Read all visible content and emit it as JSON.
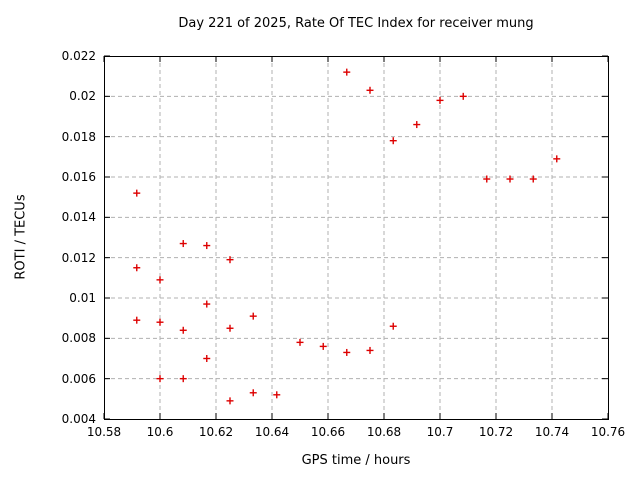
{
  "chart_data": {
    "type": "scatter",
    "title": "Day 221 of 2025, Rate Of TEC Index for receiver mung",
    "xlabel": "GPS time / hours",
    "ylabel": "ROTI / TECUs",
    "xlim": [
      10.58,
      10.76
    ],
    "ylim": [
      0.004,
      0.022
    ],
    "xtick_values": [
      10.58,
      10.6,
      10.62,
      10.64,
      10.66,
      10.68,
      10.7,
      10.72,
      10.74,
      10.76
    ],
    "xtick_labels": [
      "10.58",
      "10.6",
      "10.62",
      "10.64",
      "10.66",
      "10.68",
      "10.7",
      "10.72",
      "10.74",
      "10.76"
    ],
    "ytick_values": [
      0.004,
      0.006,
      0.008,
      0.01,
      0.012,
      0.014,
      0.016,
      0.018,
      0.02,
      0.022
    ],
    "ytick_labels": [
      "0.004",
      "0.006",
      "0.008",
      "0.01",
      "0.012",
      "0.014",
      "0.016",
      "0.018",
      "0.02",
      "0.022"
    ],
    "grid": true,
    "legend": "none",
    "marker": "plus",
    "series": [
      {
        "name": "ROTI",
        "points": [
          [
            10.5917,
            0.0152
          ],
          [
            10.5917,
            0.0115
          ],
          [
            10.5917,
            0.0089
          ],
          [
            10.6,
            0.0109
          ],
          [
            10.6,
            0.0088
          ],
          [
            10.6,
            0.006
          ],
          [
            10.6083,
            0.0127
          ],
          [
            10.6083,
            0.0084
          ],
          [
            10.6083,
            0.006
          ],
          [
            10.6167,
            0.0126
          ],
          [
            10.6167,
            0.0097
          ],
          [
            10.6167,
            0.007
          ],
          [
            10.625,
            0.0119
          ],
          [
            10.625,
            0.0085
          ],
          [
            10.625,
            0.0049
          ],
          [
            10.6333,
            0.0091
          ],
          [
            10.6333,
            0.0053
          ],
          [
            10.6417,
            0.0052
          ],
          [
            10.65,
            0.0078
          ],
          [
            10.6583,
            0.0076
          ],
          [
            10.6667,
            0.0212
          ],
          [
            10.6667,
            0.0073
          ],
          [
            10.675,
            0.0203
          ],
          [
            10.675,
            0.0074
          ],
          [
            10.6833,
            0.0178
          ],
          [
            10.6833,
            0.0086
          ],
          [
            10.6917,
            0.0186
          ],
          [
            10.7,
            0.0198
          ],
          [
            10.7083,
            0.02
          ],
          [
            10.7167,
            0.0159
          ],
          [
            10.725,
            0.0159
          ],
          [
            10.7333,
            0.0159
          ],
          [
            10.7417,
            0.0169
          ]
        ]
      }
    ],
    "colors": {
      "marker": "#dd0000",
      "grid": "#b0b0b0",
      "border": "#000000",
      "text": "#000000",
      "background": "#ffffff"
    }
  }
}
